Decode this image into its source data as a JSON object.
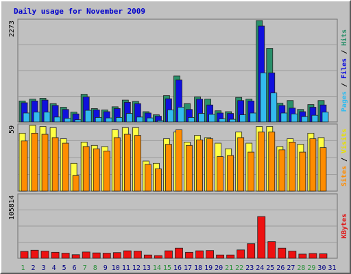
{
  "chart_data": {
    "type": "bar",
    "title": "Daily usage for November 2009",
    "categories": [
      "1",
      "2",
      "3",
      "4",
      "5",
      "6",
      "7",
      "8",
      "9",
      "10",
      "11",
      "12",
      "13",
      "14",
      "15",
      "16",
      "17",
      "18",
      "19",
      "20",
      "21",
      "22",
      "23",
      "24",
      "25",
      "26",
      "27",
      "28",
      "29",
      "30",
      "31"
    ],
    "weekend_days": [
      "1",
      "7",
      "8",
      "14",
      "15",
      "21",
      "22",
      "28",
      "29"
    ],
    "panels": [
      {
        "name": "hits-files-pages",
        "ymax_label": "2273",
        "ymax": 2273,
        "axis_label_parts": [
          {
            "text": "Pages",
            "color": "#33bbee"
          },
          {
            "text": " / ",
            "color": "#000000"
          },
          {
            "text": "Files",
            "color": "#1010dd"
          },
          {
            "text": " / ",
            "color": "#000000"
          },
          {
            "text": "Hits",
            "color": "#2a8f6a"
          }
        ],
        "series": [
          {
            "name": "Hits",
            "color": "#2a8f6a",
            "values": [
              470,
              510,
              530,
              410,
              330,
              220,
              620,
              300,
              270,
              340,
              490,
              460,
              230,
              160,
              590,
              1030,
              410,
              560,
              510,
              250,
              230,
              550,
              510,
              2273,
              1650,
              420,
              480,
              280,
              390,
              480,
              0
            ]
          },
          {
            "name": "Files",
            "color": "#1010dd",
            "values": [
              430,
              470,
              490,
              370,
              280,
              180,
              560,
              270,
              230,
              300,
              440,
              410,
              200,
              130,
              520,
              940,
              280,
              510,
              380,
              200,
              190,
              480,
              470,
              2150,
              1100,
              370,
              310,
              230,
              330,
              380,
              0
            ]
          },
          {
            "name": "Pages",
            "color": "#33bbee",
            "values": [
              200,
              220,
              220,
              110,
              80,
              50,
              260,
              100,
              90,
              100,
              190,
              110,
              90,
              30,
              270,
              330,
              100,
              190,
              170,
              70,
              60,
              160,
              200,
              1100,
              650,
              200,
              180,
              120,
              150,
              220,
              0
            ]
          }
        ]
      },
      {
        "name": "visits-sites",
        "ymax_label": "59",
        "ymax": 59,
        "axis_label_parts": [
          {
            "text": "Sites",
            "color": "#ff8c00"
          },
          {
            "text": " / ",
            "color": "#000000"
          },
          {
            "text": "Visits",
            "color": "#e8e000"
          }
        ],
        "series": [
          {
            "name": "Visits",
            "color": "#ffff44",
            "values": [
              52,
              59,
              58,
              57,
              47,
              25,
              44,
              41,
              40,
              55,
              57,
              57,
              27,
              25,
              47,
              53,
              44,
              50,
              48,
              43,
              38,
              53,
              43,
              58,
              58,
              40,
              47,
              42,
              52,
              48,
              0
            ]
          },
          {
            "name": "Sites",
            "color": "#ff8c00",
            "values": [
              45,
              52,
              51,
              48,
              43,
              14,
              40,
              38,
              36,
              48,
              51,
              50,
              24,
              20,
              42,
              55,
              41,
              46,
              47,
              31,
              32,
              48,
              35,
              53,
              53,
              37,
              44,
              35,
              47,
              39,
              0
            ]
          }
        ]
      },
      {
        "name": "kbytes",
        "ymax_label": "105814",
        "ymax": 105814,
        "axis_label_parts": [
          {
            "text": "KBytes",
            "color": "#e01010"
          }
        ],
        "series": [
          {
            "name": "KBytes",
            "color": "#ee1111",
            "values": [
              11500,
              13500,
              12000,
              10000,
              8500,
              6000,
              10500,
              9000,
              8500,
              9500,
              12500,
              12000,
              5500,
              4500,
              12500,
              17000,
              10000,
              12500,
              13000,
              5500,
              5500,
              14000,
              24500,
              70000,
              28000,
              17000,
              12000,
              7000,
              8000,
              7500,
              0
            ]
          }
        ]
      }
    ],
    "grid": true
  }
}
